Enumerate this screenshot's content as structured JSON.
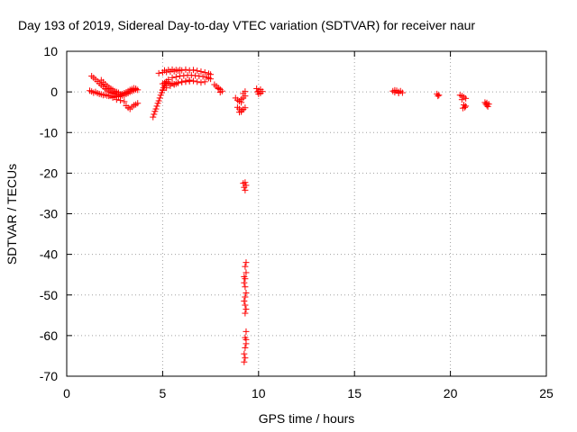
{
  "chart_data": {
    "type": "scatter",
    "title": "Day 193 of 2019, Sidereal Day-to-day VTEC variation (SDTVAR) for receiver naur",
    "xlabel": "GPS time / hours",
    "ylabel": "SDTVAR / TECUs",
    "xlim": [
      0,
      25
    ],
    "ylim": [
      -70,
      10
    ],
    "xticks": [
      0,
      5,
      10,
      15,
      20,
      25
    ],
    "yticks": [
      -70,
      -60,
      -50,
      -40,
      -30,
      -20,
      -10,
      0,
      10
    ],
    "grid": true,
    "marker": "+",
    "color": "#ff0000",
    "series": [
      {
        "name": "SDTVAR",
        "points": [
          [
            1.2,
            0.3
          ],
          [
            1.3,
            0.1
          ],
          [
            1.4,
            -0.2
          ],
          [
            1.5,
            0.0
          ],
          [
            1.6,
            -0.3
          ],
          [
            1.7,
            -0.5
          ],
          [
            1.8,
            -0.6
          ],
          [
            1.9,
            -0.8
          ],
          [
            2.0,
            -0.7
          ],
          [
            2.1,
            -0.9
          ],
          [
            2.2,
            -1.0
          ],
          [
            2.3,
            -1.0
          ],
          [
            2.4,
            -1.1
          ],
          [
            2.5,
            -1.2
          ],
          [
            2.6,
            -1.0
          ],
          [
            2.7,
            -1.2
          ],
          [
            2.8,
            -1.0
          ],
          [
            2.9,
            -0.9
          ],
          [
            3.0,
            -0.8
          ],
          [
            3.1,
            -0.5
          ],
          [
            3.2,
            -0.3
          ],
          [
            3.3,
            0.0
          ],
          [
            3.4,
            0.2
          ],
          [
            3.5,
            0.4
          ],
          [
            3.6,
            0.6
          ],
          [
            3.7,
            0.5
          ],
          [
            1.3,
            3.9
          ],
          [
            1.4,
            3.5
          ],
          [
            1.5,
            3.1
          ],
          [
            1.6,
            2.6
          ],
          [
            1.7,
            2.1
          ],
          [
            1.8,
            1.7
          ],
          [
            1.9,
            1.3
          ],
          [
            2.0,
            0.8
          ],
          [
            2.1,
            0.5
          ],
          [
            2.2,
            0.2
          ],
          [
            2.3,
            -0.1
          ],
          [
            2.4,
            -0.3
          ],
          [
            2.5,
            -0.5
          ],
          [
            2.6,
            -0.6
          ],
          [
            2.7,
            -0.7
          ],
          [
            2.8,
            -0.6
          ],
          [
            2.9,
            -0.5
          ],
          [
            3.0,
            -0.3
          ],
          [
            3.1,
            -0.1
          ],
          [
            3.2,
            0.2
          ],
          [
            3.3,
            0.5
          ],
          [
            3.4,
            0.7
          ],
          [
            3.5,
            0.9
          ],
          [
            3.6,
            0.8
          ],
          [
            1.8,
            2.9
          ],
          [
            1.9,
            2.4
          ],
          [
            2.0,
            1.9
          ],
          [
            2.1,
            1.5
          ],
          [
            2.2,
            1.1
          ],
          [
            2.3,
            0.8
          ],
          [
            2.4,
            0.5
          ],
          [
            2.5,
            0.2
          ],
          [
            2.6,
            0.0
          ],
          [
            2.7,
            -0.2
          ],
          [
            2.2,
            -0.9
          ],
          [
            2.4,
            -1.4
          ],
          [
            2.6,
            -1.9
          ],
          [
            2.8,
            -2.1
          ],
          [
            3.0,
            -2.4
          ],
          [
            3.1,
            -3.4
          ],
          [
            3.2,
            -3.9
          ],
          [
            3.3,
            -4.2
          ],
          [
            3.4,
            -3.7
          ],
          [
            3.5,
            -3.3
          ],
          [
            3.6,
            -3.1
          ],
          [
            3.7,
            -2.8
          ],
          [
            4.5,
            -6.2
          ],
          [
            4.55,
            -5.5
          ],
          [
            4.6,
            -4.8
          ],
          [
            4.65,
            -4.2
          ],
          [
            4.7,
            -3.5
          ],
          [
            4.75,
            -2.8
          ],
          [
            4.8,
            -2.2
          ],
          [
            4.85,
            -1.5
          ],
          [
            4.9,
            -0.8
          ],
          [
            4.95,
            -0.2
          ],
          [
            5.0,
            0.4
          ],
          [
            5.05,
            1.0
          ],
          [
            5.1,
            1.5
          ],
          [
            5.15,
            2.0
          ],
          [
            5.2,
            2.5
          ],
          [
            5.3,
            3.0
          ],
          [
            5.0,
            2.0
          ],
          [
            5.1,
            2.2
          ],
          [
            5.2,
            2.5
          ],
          [
            5.3,
            2.2
          ],
          [
            5.4,
            1.9
          ],
          [
            5.5,
            2.1
          ],
          [
            5.6,
            1.8
          ],
          [
            5.7,
            2.0
          ],
          [
            5.8,
            2.3
          ],
          [
            6.0,
            2.4
          ],
          [
            6.2,
            2.5
          ],
          [
            6.4,
            2.6
          ],
          [
            6.6,
            2.7
          ],
          [
            6.8,
            2.5
          ],
          [
            7.0,
            2.3
          ],
          [
            7.2,
            2.5
          ],
          [
            5.0,
            0.5
          ],
          [
            5.2,
            1.0
          ],
          [
            5.4,
            1.5
          ],
          [
            5.6,
            1.9
          ],
          [
            5.8,
            2.2
          ],
          [
            6.0,
            2.5
          ],
          [
            6.2,
            2.7
          ],
          [
            6.4,
            2.9
          ],
          [
            5.5,
            3.5
          ],
          [
            5.7,
            3.7
          ],
          [
            5.9,
            3.9
          ],
          [
            6.1,
            4.0
          ],
          [
            6.3,
            4.1
          ],
          [
            6.5,
            4.1
          ],
          [
            6.7,
            4.0
          ],
          [
            6.9,
            3.9
          ],
          [
            7.1,
            3.8
          ],
          [
            7.3,
            3.6
          ],
          [
            7.4,
            3.4
          ],
          [
            7.5,
            3.2
          ],
          [
            4.8,
            4.6
          ],
          [
            5.0,
            4.8
          ],
          [
            5.1,
            5.3
          ],
          [
            5.2,
            4.9
          ],
          [
            5.3,
            5.4
          ],
          [
            5.4,
            5.0
          ],
          [
            5.5,
            5.5
          ],
          [
            5.6,
            5.1
          ],
          [
            5.7,
            5.4
          ],
          [
            5.8,
            5.2
          ],
          [
            5.9,
            5.4
          ],
          [
            6.0,
            5.3
          ],
          [
            6.2,
            5.5
          ],
          [
            6.4,
            5.3
          ],
          [
            6.6,
            5.4
          ],
          [
            6.8,
            5.2
          ],
          [
            7.0,
            5.0
          ],
          [
            7.2,
            4.8
          ],
          [
            7.4,
            4.5
          ],
          [
            7.5,
            4.3
          ],
          [
            7.7,
            1.8
          ],
          [
            7.8,
            1.4
          ],
          [
            7.9,
            1.0
          ],
          [
            8.0,
            0.6
          ],
          [
            8.1,
            0.2
          ],
          [
            8.0,
            -0.1
          ],
          [
            7.9,
            0.8
          ],
          [
            8.8,
            -1.5
          ],
          [
            8.9,
            -2.0
          ],
          [
            9.0,
            -2.3
          ],
          [
            9.1,
            -1.8
          ],
          [
            9.2,
            -1.5
          ],
          [
            9.3,
            -1.0
          ],
          [
            9.2,
            -0.4
          ],
          [
            9.3,
            0.1
          ],
          [
            9.1,
            -2.6
          ],
          [
            8.9,
            -3.8
          ],
          [
            9.0,
            -4.2
          ],
          [
            9.1,
            -4.6
          ],
          [
            9.2,
            -4.3
          ],
          [
            9.3,
            -3.9
          ],
          [
            9.1,
            -4.9
          ],
          [
            9.0,
            -5.0
          ],
          [
            9.2,
            -22.5
          ],
          [
            9.25,
            -23.5
          ],
          [
            9.3,
            -24.2
          ],
          [
            9.35,
            -23.0
          ],
          [
            9.3,
            -22.3
          ],
          [
            9.3,
            -43.0
          ],
          [
            9.35,
            -44.5
          ],
          [
            9.3,
            -46.0
          ],
          [
            9.25,
            -47.0
          ],
          [
            9.3,
            -48.0
          ],
          [
            9.35,
            -49.5
          ],
          [
            9.3,
            -50.5
          ],
          [
            9.25,
            -51.5
          ],
          [
            9.3,
            -52.5
          ],
          [
            9.35,
            -53.5
          ],
          [
            9.3,
            -54.5
          ],
          [
            9.25,
            -45.5
          ],
          [
            9.35,
            -42.0
          ],
          [
            9.35,
            -59.0
          ],
          [
            9.3,
            -60.5
          ],
          [
            9.35,
            -62.0
          ],
          [
            9.3,
            -63.0
          ],
          [
            9.25,
            -64.5
          ],
          [
            9.3,
            -65.5
          ],
          [
            9.25,
            -66.5
          ],
          [
            9.35,
            -61.0
          ],
          [
            9.9,
            0.8
          ],
          [
            10.0,
            0.2
          ],
          [
            10.1,
            -0.3
          ],
          [
            10.2,
            0.1
          ],
          [
            10.0,
            -0.5
          ],
          [
            10.1,
            0.6
          ],
          [
            9.95,
            0.0
          ],
          [
            17.0,
            0.2
          ],
          [
            17.1,
            -0.1
          ],
          [
            17.2,
            0.3
          ],
          [
            17.3,
            0.0
          ],
          [
            17.4,
            0.2
          ],
          [
            17.5,
            -0.2
          ],
          [
            17.1,
            0.4
          ],
          [
            17.3,
            -0.3
          ],
          [
            19.3,
            -0.5
          ],
          [
            19.4,
            -0.8
          ],
          [
            19.35,
            -1.0
          ],
          [
            20.5,
            -0.8
          ],
          [
            20.6,
            -1.0
          ],
          [
            20.7,
            -1.3
          ],
          [
            20.8,
            -1.6
          ],
          [
            20.6,
            -1.9
          ],
          [
            20.7,
            -3.2
          ],
          [
            20.75,
            -3.8
          ],
          [
            20.65,
            -4.0
          ],
          [
            20.8,
            -3.5
          ],
          [
            21.8,
            -2.6
          ],
          [
            21.85,
            -3.0
          ],
          [
            21.9,
            -3.3
          ],
          [
            21.95,
            -3.6
          ],
          [
            22.0,
            -3.0
          ],
          [
            21.9,
            -2.7
          ]
        ]
      }
    ]
  }
}
